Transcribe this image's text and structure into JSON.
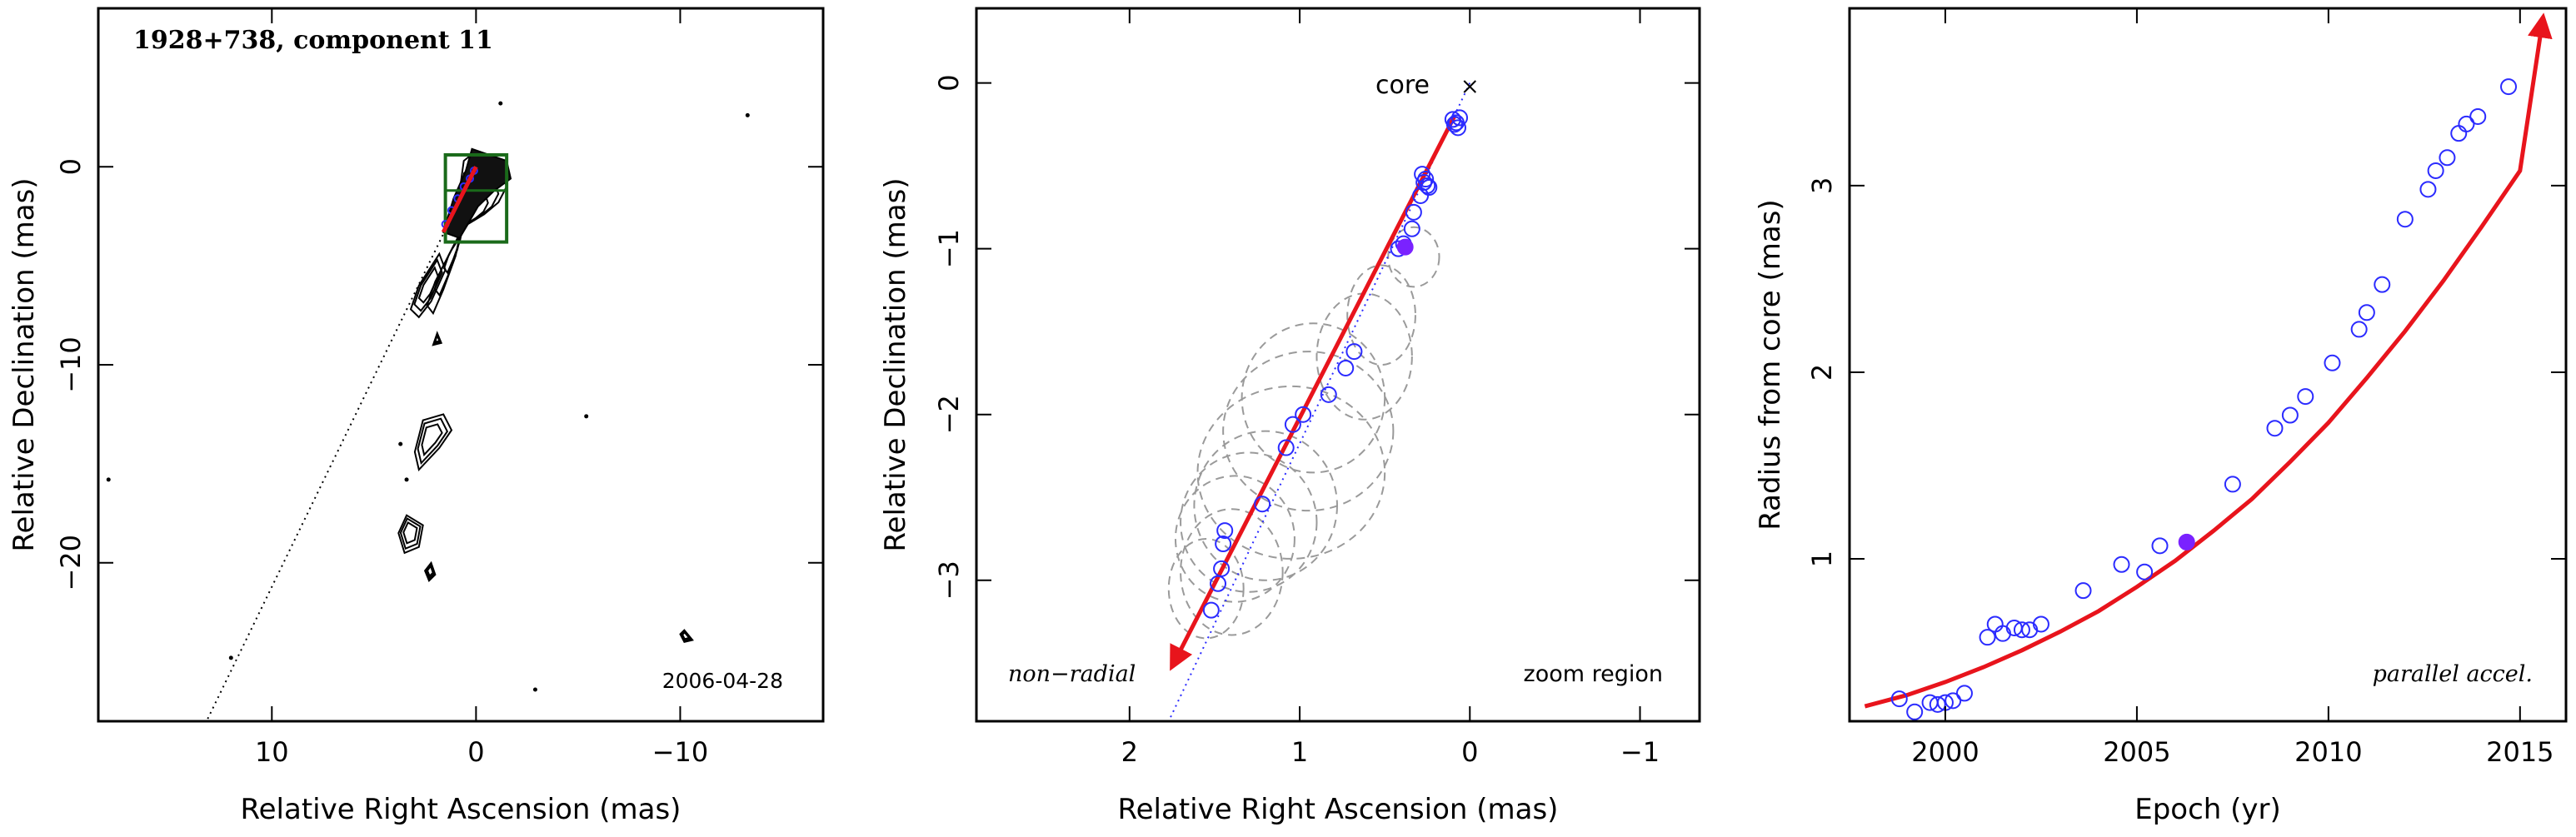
{
  "colors": {
    "axis": "#000000",
    "track": "#e8141c",
    "marker": "#2b2bff",
    "marker_fill": "#7a22ff",
    "box": "#1a6a1a",
    "ellipse": "#9a9a9a",
    "contour": "#000000"
  },
  "chart_data": [
    {
      "type": "contour",
      "title": "1928+738, component 11",
      "date_label": "2006-04-28",
      "xlabel": "Relative Right Ascension (mas)",
      "ylabel": "Relative Declination (mas)",
      "xlim": [
        18.5,
        -17
      ],
      "ylim": [
        -28,
        8
      ],
      "xticks": [
        10,
        0,
        -10
      ],
      "yticks": [
        0,
        -10,
        -20
      ],
      "xtick_labels": [
        "10",
        "0",
        "−10"
      ],
      "ytick_labels": [
        "0",
        "−10",
        "−20"
      ],
      "trajectory_line": [
        [
          0,
          0
        ],
        [
          13.2,
          -28
        ]
      ],
      "zoom_box": {
        "x": [
          1.5,
          -1.5
        ],
        "y": [
          0.6,
          -3.8
        ]
      },
      "contours": [
        [
          [
            0.0,
            0.8
          ],
          [
            -1.2,
            0.0
          ],
          [
            -1.5,
            -1.0
          ],
          [
            -1.1,
            -1.8
          ],
          [
            -0.4,
            -2.4
          ],
          [
            0.4,
            -2.9
          ],
          [
            1.2,
            -4.2
          ],
          [
            2.0,
            -5.8
          ],
          [
            2.4,
            -7.0
          ],
          [
            2.1,
            -7.4
          ],
          [
            1.6,
            -6.2
          ],
          [
            1.0,
            -4.5
          ],
          [
            0.7,
            -3.0
          ],
          [
            0.8,
            -1.2
          ],
          [
            0.6,
            0.3
          ],
          [
            0.0,
            0.8
          ]
        ],
        [
          [
            1.8,
            -4.4
          ],
          [
            2.8,
            -6.0
          ],
          [
            3.2,
            -7.2
          ],
          [
            2.8,
            -7.6
          ],
          [
            2.2,
            -6.8
          ],
          [
            1.5,
            -5.2
          ],
          [
            1.8,
            -4.4
          ]
        ],
        [
          [
            2.6,
            -12.8
          ],
          [
            1.6,
            -12.5
          ],
          [
            1.2,
            -13.3
          ],
          [
            1.8,
            -14.2
          ],
          [
            2.8,
            -15.3
          ],
          [
            3.0,
            -14.4
          ],
          [
            2.6,
            -12.8
          ]
        ],
        [
          [
            3.4,
            -17.6
          ],
          [
            2.6,
            -18.1
          ],
          [
            2.8,
            -19.2
          ],
          [
            3.5,
            -19.5
          ],
          [
            3.8,
            -18.5
          ],
          [
            3.4,
            -17.6
          ]
        ],
        [
          [
            2.2,
            -20.0
          ],
          [
            2.0,
            -20.6
          ],
          [
            2.3,
            -20.9
          ],
          [
            2.5,
            -20.4
          ],
          [
            2.2,
            -20.0
          ]
        ],
        [
          [
            1.9,
            -8.4
          ],
          [
            1.7,
            -8.9
          ],
          [
            2.1,
            -9.0
          ],
          [
            1.9,
            -8.4
          ]
        ],
        [
          [
            -10.2,
            -23.4
          ],
          [
            -10.6,
            -23.9
          ],
          [
            -10.2,
            -24.0
          ],
          [
            -10.0,
            -23.6
          ],
          [
            -10.2,
            -23.4
          ]
        ]
      ],
      "contour_scales": [
        0.55,
        0.8,
        1.0
      ],
      "blob": [
        [
          0.2,
          0.9
        ],
        [
          -1.5,
          0.3
        ],
        [
          -1.7,
          -0.6
        ],
        [
          -0.9,
          -1.2
        ],
        [
          -0.1,
          -2.0
        ],
        [
          0.8,
          -3.6
        ],
        [
          1.6,
          -3.3
        ],
        [
          1.1,
          -1.6
        ],
        [
          0.5,
          -0.2
        ],
        [
          0.2,
          0.9
        ]
      ],
      "points": [
        [
          0.1,
          -0.2
        ],
        [
          0.3,
          -0.6
        ],
        [
          0.6,
          -1.0
        ],
        [
          0.9,
          -1.6
        ],
        [
          1.2,
          -2.2
        ],
        [
          1.5,
          -2.9
        ]
      ],
      "specks": [
        [
          -1.2,
          3.2
        ],
        [
          -13.3,
          2.6
        ],
        [
          -5.4,
          -12.6
        ],
        [
          3.7,
          -14.0
        ],
        [
          3.4,
          -15.8
        ],
        [
          18.0,
          -15.8
        ],
        [
          12.0,
          -24.8
        ],
        [
          -2.9,
          -26.4
        ]
      ]
    },
    {
      "type": "scatter",
      "xlabel": "Relative Right Ascension (mas)",
      "ylabel": "Relative Declination (mas)",
      "xlim": [
        2.9,
        -1.35
      ],
      "ylim": [
        -3.85,
        0.45
      ],
      "xticks": [
        2,
        1,
        0,
        -1
      ],
      "yticks": [
        0,
        -1,
        -2,
        -3
      ],
      "xtick_labels": [
        "2",
        "1",
        "0",
        "−1"
      ],
      "ytick_labels": [
        "0",
        "−1",
        "−2",
        "−3"
      ],
      "annotations": {
        "core": "core",
        "non_radial": "non−radial",
        "zoom_region": "zoom region"
      },
      "core_position": [
        0.0,
        0.0
      ],
      "x": [
        0.09,
        0.07,
        0.1,
        0.08,
        0.06,
        0.28,
        0.26,
        0.25,
        0.27,
        0.24,
        0.29,
        0.33,
        0.34,
        0.39,
        0.42,
        0.68,
        0.73,
        0.83,
        0.98,
        1.04,
        1.08,
        1.22,
        1.44,
        1.45,
        1.46,
        1.48,
        1.52
      ],
      "y": [
        -0.25,
        -0.27,
        -0.22,
        -0.24,
        -0.21,
        -0.55,
        -0.58,
        -0.62,
        -0.6,
        -0.63,
        -0.68,
        -0.78,
        -0.88,
        -0.97,
        -1.0,
        -1.62,
        -1.72,
        -1.88,
        -2.0,
        -2.06,
        -2.2,
        -2.54,
        -2.7,
        -2.78,
        -2.93,
        -3.02,
        -3.18
      ],
      "filled_point": [
        0.38,
        -0.99
      ],
      "track": [
        [
          0.09,
          -0.2
        ],
        [
          1.75,
          -3.52
        ]
      ],
      "dotted_line": [
        [
          0.0,
          0.0
        ],
        [
          1.77,
          -3.85
        ]
      ],
      "ellipses": [
        [
          0.33,
          -1.05,
          0.15,
          0.18
        ],
        [
          0.52,
          -1.4,
          0.2,
          0.3
        ],
        [
          0.62,
          -1.65,
          0.28,
          0.38
        ],
        [
          0.92,
          -1.9,
          0.42,
          0.45
        ],
        [
          0.95,
          -2.1,
          0.5,
          0.48
        ],
        [
          1.05,
          -2.35,
          0.55,
          0.52
        ],
        [
          1.2,
          -2.55,
          0.42,
          0.45
        ],
        [
          1.3,
          -2.65,
          0.4,
          0.42
        ],
        [
          1.38,
          -2.75,
          0.35,
          0.38
        ],
        [
          1.4,
          -2.95,
          0.3,
          0.38
        ],
        [
          1.55,
          -3.05,
          0.22,
          0.3
        ]
      ]
    },
    {
      "type": "scatter",
      "xlabel": "Epoch (yr)",
      "ylabel": "Radius from core (mas)",
      "xlim": [
        1997.5,
        2016.2
      ],
      "ylim": [
        0.13,
        3.95
      ],
      "xticks": [
        2000,
        2005,
        2010,
        2015
      ],
      "yticks": [
        1,
        2,
        3
      ],
      "xtick_labels": [
        "2000",
        "2005",
        "2010",
        "2015"
      ],
      "ytick_labels": [
        "1",
        "2",
        "3"
      ],
      "annotation": "parallel accel.",
      "x": [
        1998.8,
        1999.2,
        1999.6,
        1999.8,
        2000.0,
        2000.2,
        2000.5,
        2001.1,
        2001.3,
        2001.5,
        2001.8,
        2002.0,
        2002.2,
        2002.5,
        2003.6,
        2004.6,
        2005.2,
        2005.6,
        2007.5,
        2008.6,
        2009.0,
        2009.4,
        2010.1,
        2010.8,
        2011.0,
        2011.4,
        2012.0,
        2012.6,
        2012.8,
        2013.1,
        2013.4,
        2013.6,
        2013.9,
        2014.7
      ],
      "y": [
        0.25,
        0.18,
        0.23,
        0.22,
        0.23,
        0.24,
        0.28,
        0.58,
        0.65,
        0.6,
        0.63,
        0.62,
        0.62,
        0.65,
        0.83,
        0.97,
        0.93,
        1.07,
        1.4,
        1.7,
        1.77,
        1.87,
        2.05,
        2.23,
        2.32,
        2.47,
        2.82,
        2.98,
        3.08,
        3.15,
        3.28,
        3.33,
        3.37,
        3.53
      ],
      "filled_point": [
        2006.3,
        1.09
      ],
      "fit_curve": {
        "x": [
          1997.9,
          1999.0,
          2000.0,
          2001.0,
          2002.0,
          2003.0,
          2004.0,
          2005.0,
          2006.0,
          2007.0,
          2008.0,
          2009.0,
          2010.0,
          2011.0,
          2012.0,
          2013.0,
          2014.0,
          2015.0,
          2015.6
        ],
        "y": [
          0.21,
          0.27,
          0.34,
          0.42,
          0.51,
          0.61,
          0.72,
          0.85,
          0.99,
          1.15,
          1.32,
          1.52,
          1.73,
          1.97,
          2.22,
          2.49,
          2.78,
          3.08,
          3.9
        ]
      }
    }
  ]
}
